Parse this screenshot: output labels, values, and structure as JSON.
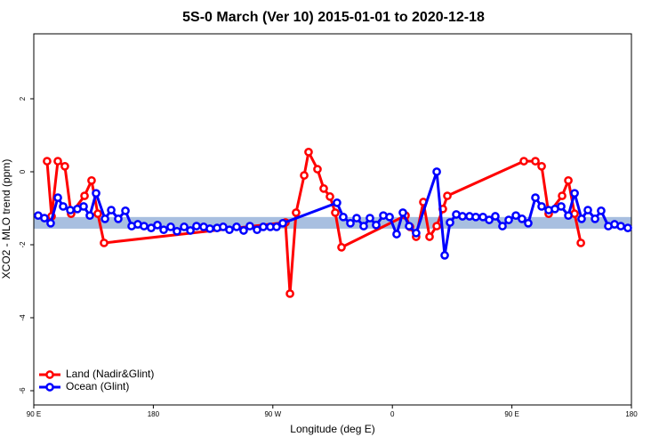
{
  "chart_data": {
    "type": "line",
    "title": "5S-0 March (Ver 10)   2015-01-01 to 2020-12-18",
    "x_label": "Longitude (deg E)",
    "y_label": "XCO2 - MLO trend (ppm)",
    "xlim": [
      90,
      540
    ],
    "ylim": [
      -6.39,
      3.78
    ],
    "xticks": [
      {
        "value": 90,
        "label": "90 E"
      },
      180,
      {
        "value": 270,
        "label": "90 W"
      },
      {
        "value": 360,
        "label": "0"
      },
      {
        "value": 450,
        "label": "90 E"
      },
      {
        "value": 540,
        "label": "180"
      }
    ],
    "yticks": [
      2,
      0,
      -2,
      -4,
      -6
    ],
    "band": [
      -1.56,
      -1.24
    ],
    "band_color": "#a8bfe0",
    "legend": "bottom-left",
    "series": [
      {
        "name": "Land (Nadir&Glint)",
        "color": "#ff0000",
        "x": [
          100.0,
          103.4,
          108.1,
          113.4,
          118.1,
          128.2,
          133.5,
          138.2,
          142.9,
          279.5,
          282.9,
          287.5,
          293.6,
          296.9,
          303.6,
          308.3,
          313.0,
          317.0,
          321.7,
          369.9,
          373.3,
          377.9,
          383.3,
          388.0,
          393.4,
          398.0,
          401.4,
          459.0,
          467.7,
          472.4,
          477.7,
          487.8,
          492.5,
          497.2,
          501.9
        ],
        "values": [
          0.29,
          -1.22,
          0.29,
          0.15,
          -1.15,
          -0.66,
          -0.24,
          -1.15,
          -1.95,
          -1.39,
          -3.34,
          -1.12,
          -0.1,
          0.54,
          0.07,
          -0.46,
          -0.68,
          -1.12,
          -2.07,
          -1.2,
          -1.51,
          -1.78,
          -0.83,
          -1.78,
          -1.49,
          -1.02,
          -0.66,
          0.29,
          0.29,
          0.15,
          -1.15,
          -0.66,
          -0.24,
          -1.15,
          -1.95
        ]
      },
      {
        "name": "Ocean (Glint)",
        "color": "#0000ff",
        "x": [
          93.3,
          98.0,
          102.7,
          108.1,
          112.1,
          117.5,
          122.8,
          127.5,
          132.2,
          136.9,
          143.6,
          148.3,
          153.6,
          159.0,
          163.7,
          168.3,
          173.0,
          178.4,
          183.1,
          187.8,
          193.1,
          197.8,
          203.2,
          207.9,
          212.5,
          217.9,
          222.6,
          228.0,
          232.6,
          237.3,
          242.7,
          248.0,
          252.7,
          258.1,
          262.8,
          268.1,
          272.8,
          277.5,
          318.3,
          323.0,
          328.4,
          333.1,
          338.4,
          343.1,
          347.8,
          353.2,
          357.9,
          363.2,
          367.9,
          372.6,
          377.9,
          393.4,
          399.4,
          403.4,
          408.1,
          412.8,
          418.1,
          422.8,
          428.2,
          432.9,
          437.5,
          442.9,
          447.6,
          453.0,
          457.6,
          462.3,
          467.7,
          472.4,
          477.7,
          482.4,
          487.1,
          492.5,
          497.2,
          502.5,
          507.2,
          512.6,
          517.2,
          522.6,
          527.3,
          532.0,
          537.3
        ],
        "values": [
          -1.2,
          -1.27,
          -1.41,
          -0.71,
          -0.95,
          -1.05,
          -1.02,
          -0.95,
          -1.2,
          -0.59,
          -1.29,
          -1.05,
          -1.29,
          -1.07,
          -1.49,
          -1.44,
          -1.49,
          -1.54,
          -1.46,
          -1.59,
          -1.51,
          -1.63,
          -1.51,
          -1.61,
          -1.49,
          -1.51,
          -1.56,
          -1.54,
          -1.51,
          -1.59,
          -1.51,
          -1.61,
          -1.49,
          -1.59,
          -1.51,
          -1.51,
          -1.51,
          -1.41,
          -0.85,
          -1.24,
          -1.41,
          -1.27,
          -1.49,
          -1.27,
          -1.46,
          -1.2,
          -1.24,
          -1.71,
          -1.12,
          -1.49,
          -1.68,
          0.0,
          -2.29,
          -1.39,
          -1.17,
          -1.22,
          -1.22,
          -1.24,
          -1.24,
          -1.32,
          -1.22,
          -1.49,
          -1.32,
          -1.2,
          -1.29,
          -1.41,
          -0.71,
          -0.95,
          -1.05,
          -1.02,
          -0.95,
          -1.2,
          -0.59,
          -1.29,
          -1.05,
          -1.29,
          -1.07,
          -1.49,
          -1.44,
          -1.49,
          -1.54
        ]
      }
    ]
  }
}
